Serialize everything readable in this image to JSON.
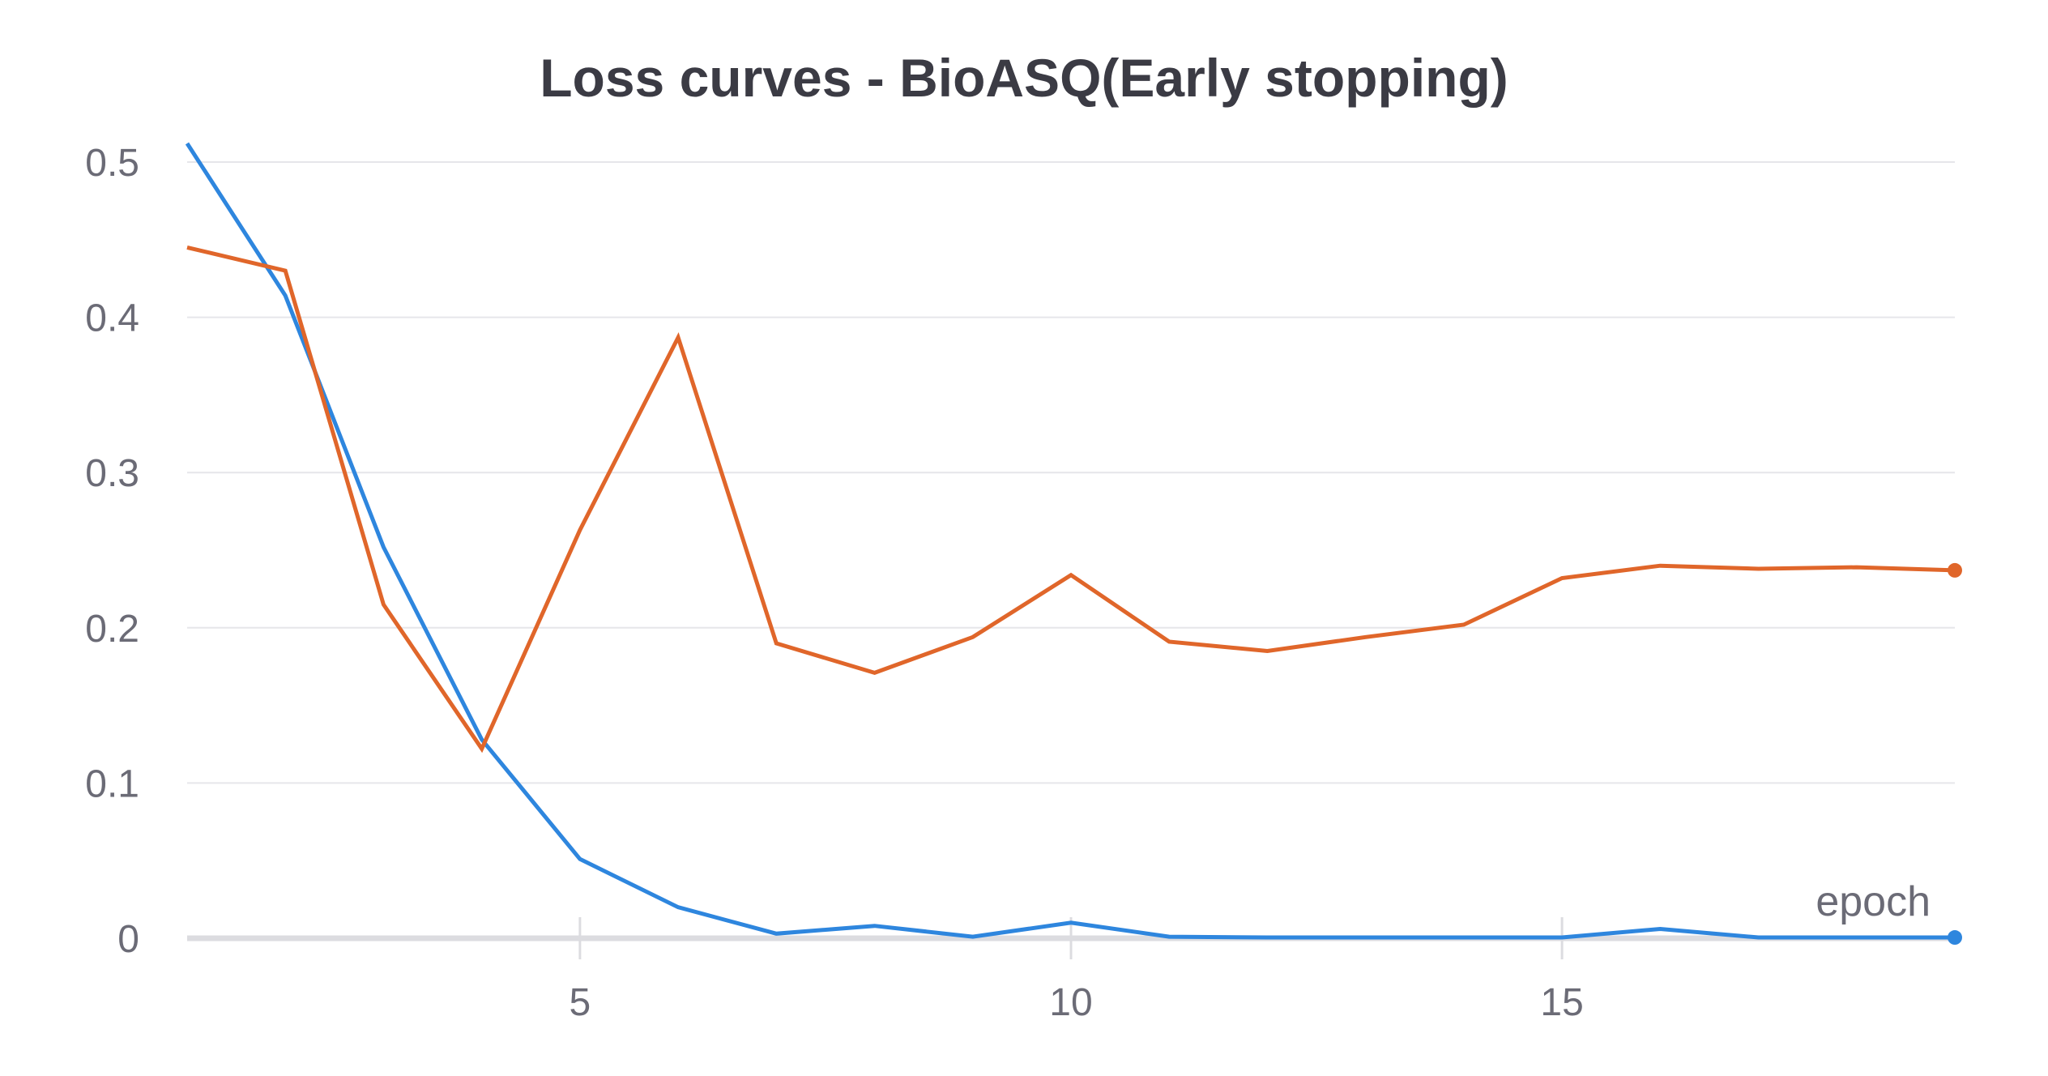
{
  "chart_data": {
    "type": "line",
    "title": "Loss curves - BioASQ(Early stopping)",
    "xlabel": "epoch",
    "ylabel": "",
    "xlim": [
      1,
      19
    ],
    "ylim": [
      0,
      0.5
    ],
    "x_ticks": [
      5,
      10,
      15
    ],
    "y_ticks": [
      0,
      0.1,
      0.2,
      0.3,
      0.4,
      0.5
    ],
    "y_tick_labels": [
      "0",
      "0.1",
      "0.2",
      "0.3",
      "0.4",
      "0.5"
    ],
    "x_tick_labels": [
      "5",
      "10",
      "15"
    ],
    "grid": true,
    "legend": false,
    "x": [
      1,
      2,
      3,
      4,
      5,
      6,
      7,
      8,
      9,
      10,
      11,
      12,
      13,
      14,
      15,
      16,
      17,
      18,
      19
    ],
    "series": [
      {
        "color": "#2e86de",
        "values": [
          0.512,
          0.414,
          0.252,
          0.128,
          0.051,
          0.02,
          0.003,
          0.008,
          0.001,
          0.01,
          0.001,
          0.0005,
          0.0005,
          0.0005,
          0.0005,
          0.006,
          0.0005,
          0.0005,
          0.0005
        ]
      },
      {
        "color": "#e0662a",
        "values": [
          0.445,
          0.43,
          0.215,
          0.122,
          0.263,
          0.387,
          0.19,
          0.171,
          0.194,
          0.234,
          0.191,
          0.185,
          0.194,
          0.202,
          0.232,
          0.24,
          0.238,
          0.239,
          0.237
        ]
      }
    ]
  }
}
